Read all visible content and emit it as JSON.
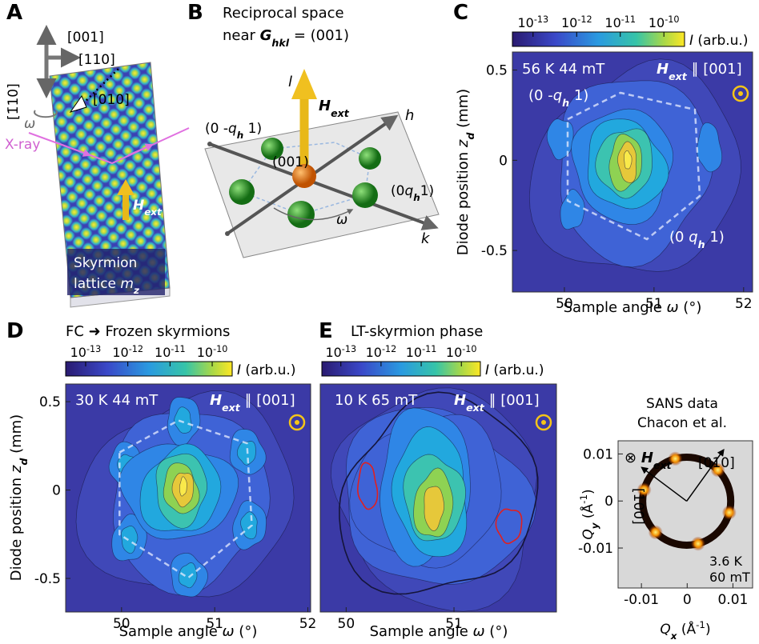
{
  "A": {
    "letter": "A",
    "d001": "[001]",
    "d110": "[110]",
    "d1b10": "[1̄10]",
    "d010": "[010]",
    "omega": "ω",
    "xray": "X-ray",
    "H": "H",
    "ext": "ext",
    "sky": "Skyrmion",
    "lat": "lattice ",
    "m": "m",
    "z": "z"
  },
  "B": {
    "letter": "B",
    "line1": "Reciprocal space",
    "near": "near ",
    "G": "G",
    "hkl": "hkl",
    "eq": " = (001)",
    "l": "l",
    "H": "H",
    "ext": "ext",
    "h": "h",
    "k": "k",
    "center": "(001)",
    "peak_left": [
      "(0 -",
      "q",
      "h",
      " 1)"
    ],
    "peak_right": [
      "(0",
      "q",
      "h",
      "1)"
    ],
    "omega": "ω"
  },
  "C": {
    "letter": "C",
    "colorbar": {
      "ticks": [
        {
          "base": "10",
          "exp": "-13"
        },
        {
          "base": "10",
          "exp": "-12"
        },
        {
          "base": "10",
          "exp": "-11"
        },
        {
          "base": "10",
          "exp": "-10"
        }
      ],
      "I": "I",
      "unit": " (arb.u.)"
    },
    "conditions": "56 K 44 mT",
    "H": "H",
    "ext": "ext",
    "parallel": " ∥ [001]",
    "peak_left": [
      "(0 -",
      "q",
      "h",
      " 1)"
    ],
    "peak_right": [
      "(0 ",
      "q",
      "h",
      " 1)"
    ],
    "xlabel": [
      "Sample angle ",
      "ω",
      " (°)"
    ],
    "ylabel": [
      "Diode position ",
      "z",
      "d",
      " (mm)"
    ],
    "xlim": [
      49.42,
      52.1
    ],
    "ylim": [
      -0.73,
      0.6
    ],
    "xticks": [
      50,
      51,
      52
    ],
    "yticks": [
      -0.5,
      0,
      0.5
    ]
  },
  "D": {
    "letter": "D",
    "title": "FC ➜ Frozen skyrmions",
    "colorbar": {
      "ticks": [
        {
          "base": "10",
          "exp": "-13"
        },
        {
          "base": "10",
          "exp": "-12"
        },
        {
          "base": "10",
          "exp": "-11"
        },
        {
          "base": "10",
          "exp": "-10"
        }
      ],
      "I": "I",
      "unit": " (arb.u.)"
    },
    "conditions": "30 K 44 mT",
    "H": "H",
    "ext": "ext",
    "parallel": " ∥ [001]",
    "xlabel": [
      "Sample angle ",
      "ω",
      " (°)"
    ],
    "ylabel": [
      "Diode position ",
      "z",
      "d",
      " (mm)"
    ],
    "xlim": [
      49.4,
      52.03
    ],
    "ylim": [
      -0.69,
      0.6
    ],
    "xticks": [
      50,
      51,
      52
    ],
    "yticks": [
      -0.5,
      0,
      0.5
    ]
  },
  "E": {
    "letter": "E",
    "title": "LT-skyrmion phase",
    "colorbar": {
      "ticks": [
        {
          "base": "10",
          "exp": "-13"
        },
        {
          "base": "10",
          "exp": "-12"
        },
        {
          "base": "10",
          "exp": "-11"
        },
        {
          "base": "10",
          "exp": "-10"
        }
      ],
      "I": "I",
      "unit": " (arb.u.)"
    },
    "conditions": "10 K 65 mT",
    "H": "H",
    "ext": "ext",
    "parallel": " ∥ [001]",
    "xlabel": [
      "Sample angle ",
      "ω",
      " (°)"
    ],
    "xlim": [
      49.76,
      51.95
    ],
    "ylim": [
      -0.69,
      0.6
    ],
    "xticks": [
      50,
      51
    ]
  },
  "SANS": {
    "title1": "SANS data",
    "title2": "Chacon et al.",
    "otimes": "⊗ ",
    "H": "H",
    "ext": "ext",
    "d010": "[010]",
    "d100": "[100]",
    "temp": "3.6 K",
    "field": "60 mT",
    "xlabel": [
      "Q",
      "x",
      " (Å",
      "-1",
      ")"
    ],
    "ylabel": [
      "Q",
      "y",
      " (Å",
      "-1",
      ")"
    ],
    "xlim": [
      -0.0151,
      0.0143
    ],
    "ylim": [
      -0.0185,
      0.0128
    ],
    "xticks": [
      -0.01,
      0,
      0.01
    ],
    "yticks": [
      -0.01,
      0,
      0.01
    ]
  }
}
